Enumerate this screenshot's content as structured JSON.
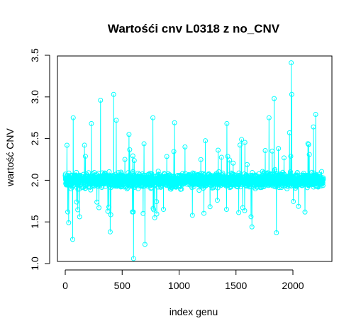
{
  "chart_data": {
    "type": "line",
    "title": "Wartośći cnv L0318 z no_CNV",
    "xlabel": "index genu",
    "ylabel": "wartość CNV",
    "xlim": [
      0,
      2268
    ],
    "ylim": [
      1.0,
      3.5
    ],
    "x_ticks": [
      0,
      500,
      1000,
      1500,
      2000
    ],
    "y_ticks": [
      1.0,
      1.5,
      2.0,
      2.5,
      3.0,
      3.5
    ],
    "series_color": "#00FFFF",
    "marker": "open-circle",
    "n_points": 2268,
    "baseline_mean": 2.0,
    "typical_range": [
      1.7,
      2.4
    ],
    "notable_points": [
      {
        "x": 15,
        "y": 2.42
      },
      {
        "x": 22,
        "y": 1.62
      },
      {
        "x": 30,
        "y": 1.49
      },
      {
        "x": 65,
        "y": 1.29
      },
      {
        "x": 70,
        "y": 2.75
      },
      {
        "x": 230,
        "y": 2.68
      },
      {
        "x": 310,
        "y": 2.96
      },
      {
        "x": 395,
        "y": 1.38
      },
      {
        "x": 425,
        "y": 3.03
      },
      {
        "x": 448,
        "y": 2.72
      },
      {
        "x": 560,
        "y": 2.55
      },
      {
        "x": 590,
        "y": 1.62
      },
      {
        "x": 600,
        "y": 1.06
      },
      {
        "x": 700,
        "y": 1.23
      },
      {
        "x": 770,
        "y": 2.75
      },
      {
        "x": 960,
        "y": 2.69
      },
      {
        "x": 1420,
        "y": 2.68
      },
      {
        "x": 1640,
        "y": 1.44
      },
      {
        "x": 1790,
        "y": 2.75
      },
      {
        "x": 1835,
        "y": 2.98
      },
      {
        "x": 1855,
        "y": 1.37
      },
      {
        "x": 1970,
        "y": 2.57
      },
      {
        "x": 1985,
        "y": 3.41
      },
      {
        "x": 1990,
        "y": 3.03
      },
      {
        "x": 2180,
        "y": 2.64
      },
      {
        "x": 2200,
        "y": 2.79
      }
    ]
  }
}
